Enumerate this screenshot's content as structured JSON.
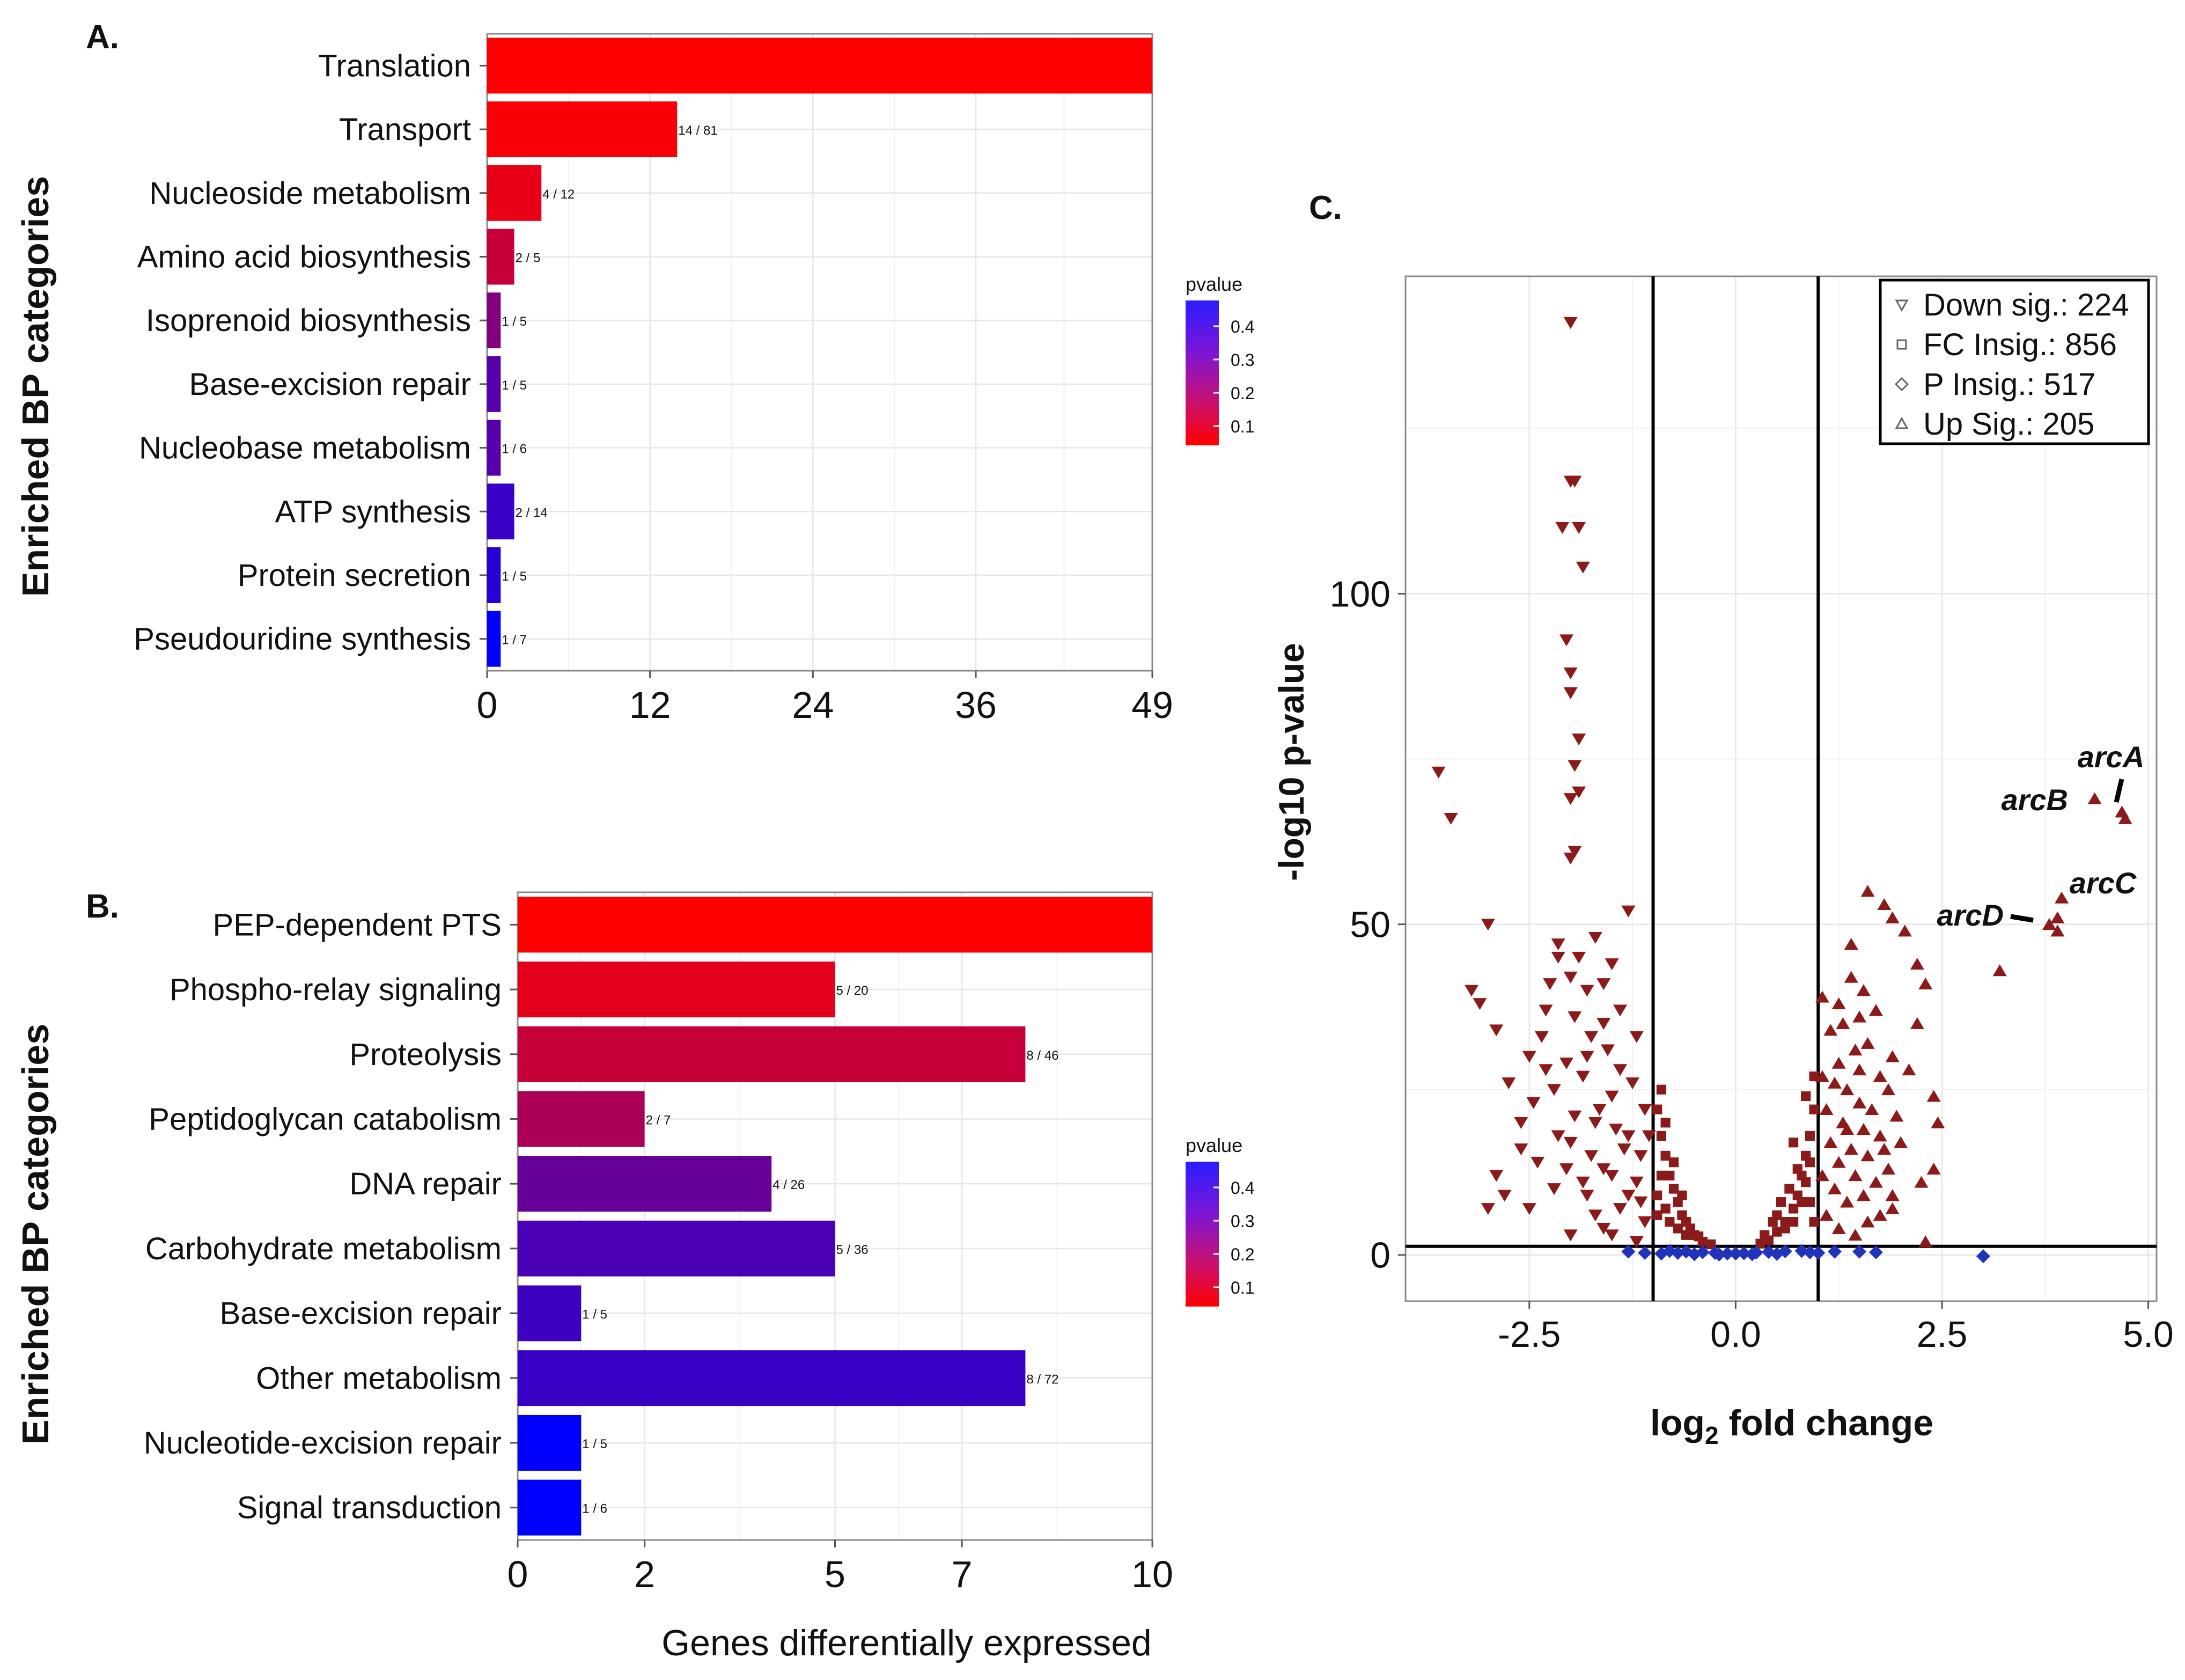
{
  "panels": {
    "a": {
      "label": "A."
    },
    "b": {
      "label": "B."
    },
    "c": {
      "label": "C."
    }
  },
  "chart_data": [
    {
      "id": "panelA",
      "type": "bar",
      "orientation": "horizontal",
      "ylabel": "Enriched BP categories",
      "xlabel": "",
      "xlim": [
        0,
        49
      ],
      "xticks": [
        0,
        12,
        24,
        36,
        49
      ],
      "color_scale": {
        "title": "pvalue",
        "ticks": [
          "0.4",
          "0.3",
          "0.2",
          "0.1"
        ],
        "low_color": "#ff0000",
        "high_color": "#0000ff"
      },
      "categories": [
        "Translation",
        "Transport",
        "Nucleoside metabolism",
        "Amino acid biosynthesis",
        "Isoprenoid biosynthesis",
        "Base-excision repair",
        "Nucleobase metabolism",
        "ATP synthesis",
        "Protein secretion",
        "Pseudouridine synthesis"
      ],
      "values": [
        49,
        14,
        4,
        2,
        1,
        1,
        1,
        2,
        1,
        1
      ],
      "pvalues": [
        0.0,
        0.01,
        0.04,
        0.1,
        0.22,
        0.3,
        0.3,
        0.35,
        0.38,
        0.45
      ],
      "ratio_labels": [
        "",
        "14 / 81",
        "4 / 12",
        "2 / 5",
        "1 / 5",
        "1 / 5",
        "1 / 6",
        "2 / 14",
        "1 / 5",
        "1 / 7"
      ]
    },
    {
      "id": "panelB",
      "type": "bar",
      "orientation": "horizontal",
      "ylabel": "Enriched BP categories",
      "xlabel": "Genes differentially expressed",
      "xlim": [
        0,
        10
      ],
      "xticks": [
        0,
        2,
        5,
        7,
        10
      ],
      "color_scale": {
        "title": "pvalue",
        "ticks": [
          "0.4",
          "0.3",
          "0.2",
          "0.1"
        ],
        "low_color": "#ff0000",
        "high_color": "#0000ff"
      },
      "categories": [
        "PEP-dependent PTS",
        "Phospho-relay signaling",
        "Proteolysis",
        "Peptidoglycan catabolism",
        "DNA repair",
        "Carbohydrate metabolism",
        "Base-excision repair",
        "Other metabolism",
        "Nucleotide-excision repair",
        "Signal transduction"
      ],
      "values": [
        10,
        5,
        8,
        2,
        4,
        5,
        1,
        8,
        1,
        1
      ],
      "pvalues": [
        0.0,
        0.05,
        0.1,
        0.15,
        0.27,
        0.32,
        0.34,
        0.35,
        0.47,
        0.48
      ],
      "ratio_labels": [
        "",
        "5 / 20",
        "8 / 46",
        "2 / 7",
        "4 / 26",
        "5 / 36",
        "1 / 5",
        "8 / 72",
        "1 / 5",
        "1 / 6"
      ]
    },
    {
      "id": "panelC",
      "type": "scatter",
      "xlabel": "log2 fold change",
      "xlabel_base": "log",
      "xlabel_sub": "2",
      "xlabel_rest": " fold change",
      "ylabel": "-log10 p-value",
      "xlim": [
        -4.0,
        5.1
      ],
      "ylim": [
        -7,
        148
      ],
      "xticks": [
        -2.5,
        0.0,
        2.5,
        5.0
      ],
      "xtick_labels": [
        "-2.5",
        "0.0",
        "2.5",
        "5.0"
      ],
      "yticks": [
        0,
        50,
        100
      ],
      "ytick_labels": [
        "0",
        "50",
        "100"
      ],
      "vlines": [
        -1,
        1
      ],
      "hline": 1.3,
      "legend": [
        {
          "shape": "down",
          "label": "Down sig.: 224"
        },
        {
          "shape": "square",
          "label": "FC Insig.: 856"
        },
        {
          "shape": "diamond",
          "label": "P Insig.: 517"
        },
        {
          "shape": "up",
          "label": "Up Sig.: 205"
        }
      ],
      "annotations": [
        {
          "text": "arcA",
          "x": 4.72,
          "y": 68
        },
        {
          "text": "arcB",
          "x": 4.35,
          "y": 69
        },
        {
          "text": "arcC",
          "x": 3.95,
          "y": 54
        },
        {
          "text": "arcD",
          "x": 3.8,
          "y": 50
        }
      ],
      "series": [
        {
          "name": "Down sig.",
          "marker": "triangle-down",
          "color": "#8b1a1a",
          "points": [
            [
              -2.0,
              141
            ],
            [
              -1.95,
              117
            ],
            [
              -2.0,
              117
            ],
            [
              -2.1,
              110
            ],
            [
              -1.9,
              110
            ],
            [
              -1.85,
              104
            ],
            [
              -2.05,
              93
            ],
            [
              -2.0,
              88
            ],
            [
              -2.0,
              85
            ],
            [
              -1.9,
              78
            ],
            [
              -3.6,
              73
            ],
            [
              -1.95,
              74
            ],
            [
              -1.9,
              70
            ],
            [
              -3.45,
              66
            ],
            [
              -2.0,
              69
            ],
            [
              -1.95,
              61
            ],
            [
              -2.0,
              60
            ],
            [
              -1.3,
              52
            ],
            [
              -3.0,
              50
            ],
            [
              -1.7,
              48
            ],
            [
              -2.15,
              47
            ],
            [
              -2.15,
              45
            ],
            [
              -1.5,
              44
            ],
            [
              -2.0,
              42
            ],
            [
              -1.8,
              40
            ],
            [
              -3.2,
              40
            ],
            [
              -3.1,
              38
            ],
            [
              -2.9,
              34
            ],
            [
              -2.5,
              30
            ],
            [
              -1.6,
              35
            ],
            [
              -1.2,
              33
            ],
            [
              -1.8,
              30
            ],
            [
              -2.3,
              28
            ],
            [
              -1.4,
              28
            ],
            [
              -2.2,
              25
            ],
            [
              -1.5,
              24
            ],
            [
              -1.1,
              22
            ],
            [
              -2.6,
              20
            ],
            [
              -1.7,
              20
            ],
            [
              -1.3,
              18
            ],
            [
              -2.0,
              17
            ],
            [
              -1.15,
              15
            ],
            [
              -2.4,
              14
            ],
            [
              -1.6,
              13
            ],
            [
              -2.9,
              12
            ],
            [
              -1.2,
              11
            ],
            [
              -2.8,
              9
            ],
            [
              -1.8,
              9
            ],
            [
              -1.4,
              7
            ],
            [
              -2.5,
              7
            ],
            [
              -1.1,
              5
            ],
            [
              -1.6,
              4
            ],
            [
              -2.0,
              3
            ],
            [
              -1.2,
              2
            ],
            [
              -3.0,
              7
            ],
            [
              -2.3,
              37
            ],
            [
              -1.95,
              36
            ],
            [
              -1.75,
              33
            ],
            [
              -1.55,
              31
            ],
            [
              -2.05,
              29
            ],
            [
              -1.85,
              27
            ],
            [
              -2.45,
              23
            ],
            [
              -1.25,
              26
            ],
            [
              -1.65,
              22
            ],
            [
              -1.95,
              21
            ],
            [
              -1.45,
              19
            ],
            [
              -2.15,
              18
            ],
            [
              -1.35,
              16
            ],
            [
              -1.75,
              15
            ],
            [
              -2.05,
              13
            ],
            [
              -1.5,
              12
            ],
            [
              -1.85,
              11
            ],
            [
              -1.3,
              9
            ],
            [
              -2.2,
              10
            ],
            [
              -1.7,
              6
            ],
            [
              -1.15,
              8
            ],
            [
              -1.5,
              3
            ],
            [
              -2.6,
              16
            ],
            [
              -2.75,
              26
            ],
            [
              -1.05,
              18
            ],
            [
              -1.9,
              45
            ],
            [
              -2.25,
              41
            ],
            [
              -1.6,
              41
            ],
            [
              -1.4,
              37
            ],
            [
              -2.35,
              33
            ]
          ]
        },
        {
          "name": "FC Insig.",
          "marker": "square",
          "color": "#8b1a1a",
          "points": [
            [
              -0.95,
              22
            ],
            [
              -0.9,
              18
            ],
            [
              -0.85,
              15
            ],
            [
              -0.8,
              12
            ],
            [
              -0.75,
              10
            ],
            [
              -0.7,
              8
            ],
            [
              -0.65,
              6
            ],
            [
              -0.6,
              5
            ],
            [
              -0.5,
              3
            ],
            [
              -0.4,
              2
            ],
            [
              -0.3,
              1.6
            ],
            [
              -0.9,
              12
            ],
            [
              -0.95,
              9
            ],
            [
              -0.85,
              7
            ],
            [
              -0.8,
              5
            ],
            [
              -0.7,
              4
            ],
            [
              -0.6,
              3
            ],
            [
              -0.9,
              25
            ],
            [
              -0.95,
              6
            ],
            [
              -0.55,
              4
            ],
            [
              -0.45,
              2.8
            ],
            [
              -0.75,
              14
            ],
            [
              -0.65,
              9
            ],
            [
              -0.85,
              20
            ],
            [
              0.3,
              1.7
            ],
            [
              0.4,
              2.2
            ],
            [
              0.5,
              3.5
            ],
            [
              0.6,
              5
            ],
            [
              0.7,
              7
            ],
            [
              0.75,
              9
            ],
            [
              0.8,
              12
            ],
            [
              0.85,
              15
            ],
            [
              0.9,
              18
            ],
            [
              0.95,
              22
            ],
            [
              0.95,
              27
            ],
            [
              0.9,
              14
            ],
            [
              0.85,
              11
            ],
            [
              0.8,
              8
            ],
            [
              0.7,
              5
            ],
            [
              0.6,
              4
            ],
            [
              0.5,
              6
            ],
            [
              0.65,
              10
            ],
            [
              0.75,
              13
            ],
            [
              0.55,
              8
            ],
            [
              0.45,
              5
            ],
            [
              0.9,
              8
            ],
            [
              0.95,
              5
            ],
            [
              0.35,
              3
            ],
            [
              0.85,
              24
            ],
            [
              0.7,
              17
            ]
          ]
        },
        {
          "name": "P Insig.",
          "marker": "diamond",
          "color": "#2233bb",
          "points": [
            [
              -0.8,
              0.6
            ],
            [
              -0.6,
              0.5
            ],
            [
              -0.4,
              0.4
            ],
            [
              -0.25,
              0.3
            ],
            [
              -0.1,
              0.2
            ],
            [
              0.0,
              0.2
            ],
            [
              0.1,
              0.25
            ],
            [
              0.25,
              0.35
            ],
            [
              0.4,
              0.45
            ],
            [
              0.6,
              0.55
            ],
            [
              0.8,
              0.6
            ],
            [
              -1.3,
              0.5
            ],
            [
              -0.9,
              0.2
            ],
            [
              1.2,
              0.5
            ],
            [
              1.5,
              0.5
            ],
            [
              1.7,
              0.4
            ],
            [
              3.0,
              -0.2
            ],
            [
              -0.5,
              0.1
            ],
            [
              0.5,
              0.15
            ],
            [
              -0.2,
              0.05
            ],
            [
              0.2,
              0.1
            ],
            [
              -1.1,
              0.3
            ],
            [
              1.0,
              0.3
            ],
            [
              0.9,
              0.4
            ],
            [
              -0.7,
              0.3
            ]
          ]
        },
        {
          "name": "Up Sig.",
          "marker": "triangle-up",
          "color": "#8b1a1a",
          "points": [
            [
              4.68,
              67
            ],
            [
              4.72,
              66
            ],
            [
              4.35,
              69
            ],
            [
              3.95,
              54
            ],
            [
              3.9,
              51
            ],
            [
              3.8,
              50
            ],
            [
              3.9,
              49
            ],
            [
              3.2,
              43
            ],
            [
              1.8,
              53
            ],
            [
              1.6,
              55
            ],
            [
              1.9,
              51
            ],
            [
              2.05,
              49
            ],
            [
              1.4,
              47
            ],
            [
              2.2,
              44
            ],
            [
              2.3,
              41
            ],
            [
              1.55,
              40
            ],
            [
              1.05,
              39
            ],
            [
              1.7,
              37
            ],
            [
              1.5,
              36
            ],
            [
              1.3,
              35
            ],
            [
              1.15,
              34
            ],
            [
              1.6,
              32
            ],
            [
              1.45,
              31
            ],
            [
              1.9,
              30
            ],
            [
              1.25,
              29
            ],
            [
              1.5,
              28
            ],
            [
              1.75,
              27
            ],
            [
              1.2,
              26
            ],
            [
              1.35,
              25
            ],
            [
              1.85,
              25
            ],
            [
              2.4,
              24
            ],
            [
              1.5,
              23
            ],
            [
              1.65,
              22
            ],
            [
              1.1,
              22
            ],
            [
              1.95,
              21
            ],
            [
              1.3,
              20
            ],
            [
              1.55,
              19
            ],
            [
              1.75,
              18
            ],
            [
              2.0,
              17
            ],
            [
              1.15,
              17
            ],
            [
              1.4,
              16
            ],
            [
              1.6,
              15
            ],
            [
              1.25,
              14
            ],
            [
              1.85,
              13
            ],
            [
              1.05,
              12
            ],
            [
              1.45,
              12
            ],
            [
              2.25,
              11
            ],
            [
              1.7,
              11
            ],
            [
              1.2,
              10
            ],
            [
              1.55,
              9
            ],
            [
              1.35,
              8
            ],
            [
              1.9,
              7
            ],
            [
              1.1,
              6
            ],
            [
              1.6,
              5
            ],
            [
              1.25,
              4
            ],
            [
              1.45,
              3
            ],
            [
              2.3,
              2
            ],
            [
              1.75,
              6
            ],
            [
              2.2,
              35
            ],
            [
              2.45,
              20
            ],
            [
              1.4,
              42
            ],
            [
              1.25,
              38
            ],
            [
              2.1,
              28
            ],
            [
              2.4,
              13
            ],
            [
              1.8,
              16
            ],
            [
              1.05,
              27
            ],
            [
              1.9,
              9
            ],
            [
              1.35,
              19
            ]
          ]
        }
      ]
    }
  ]
}
